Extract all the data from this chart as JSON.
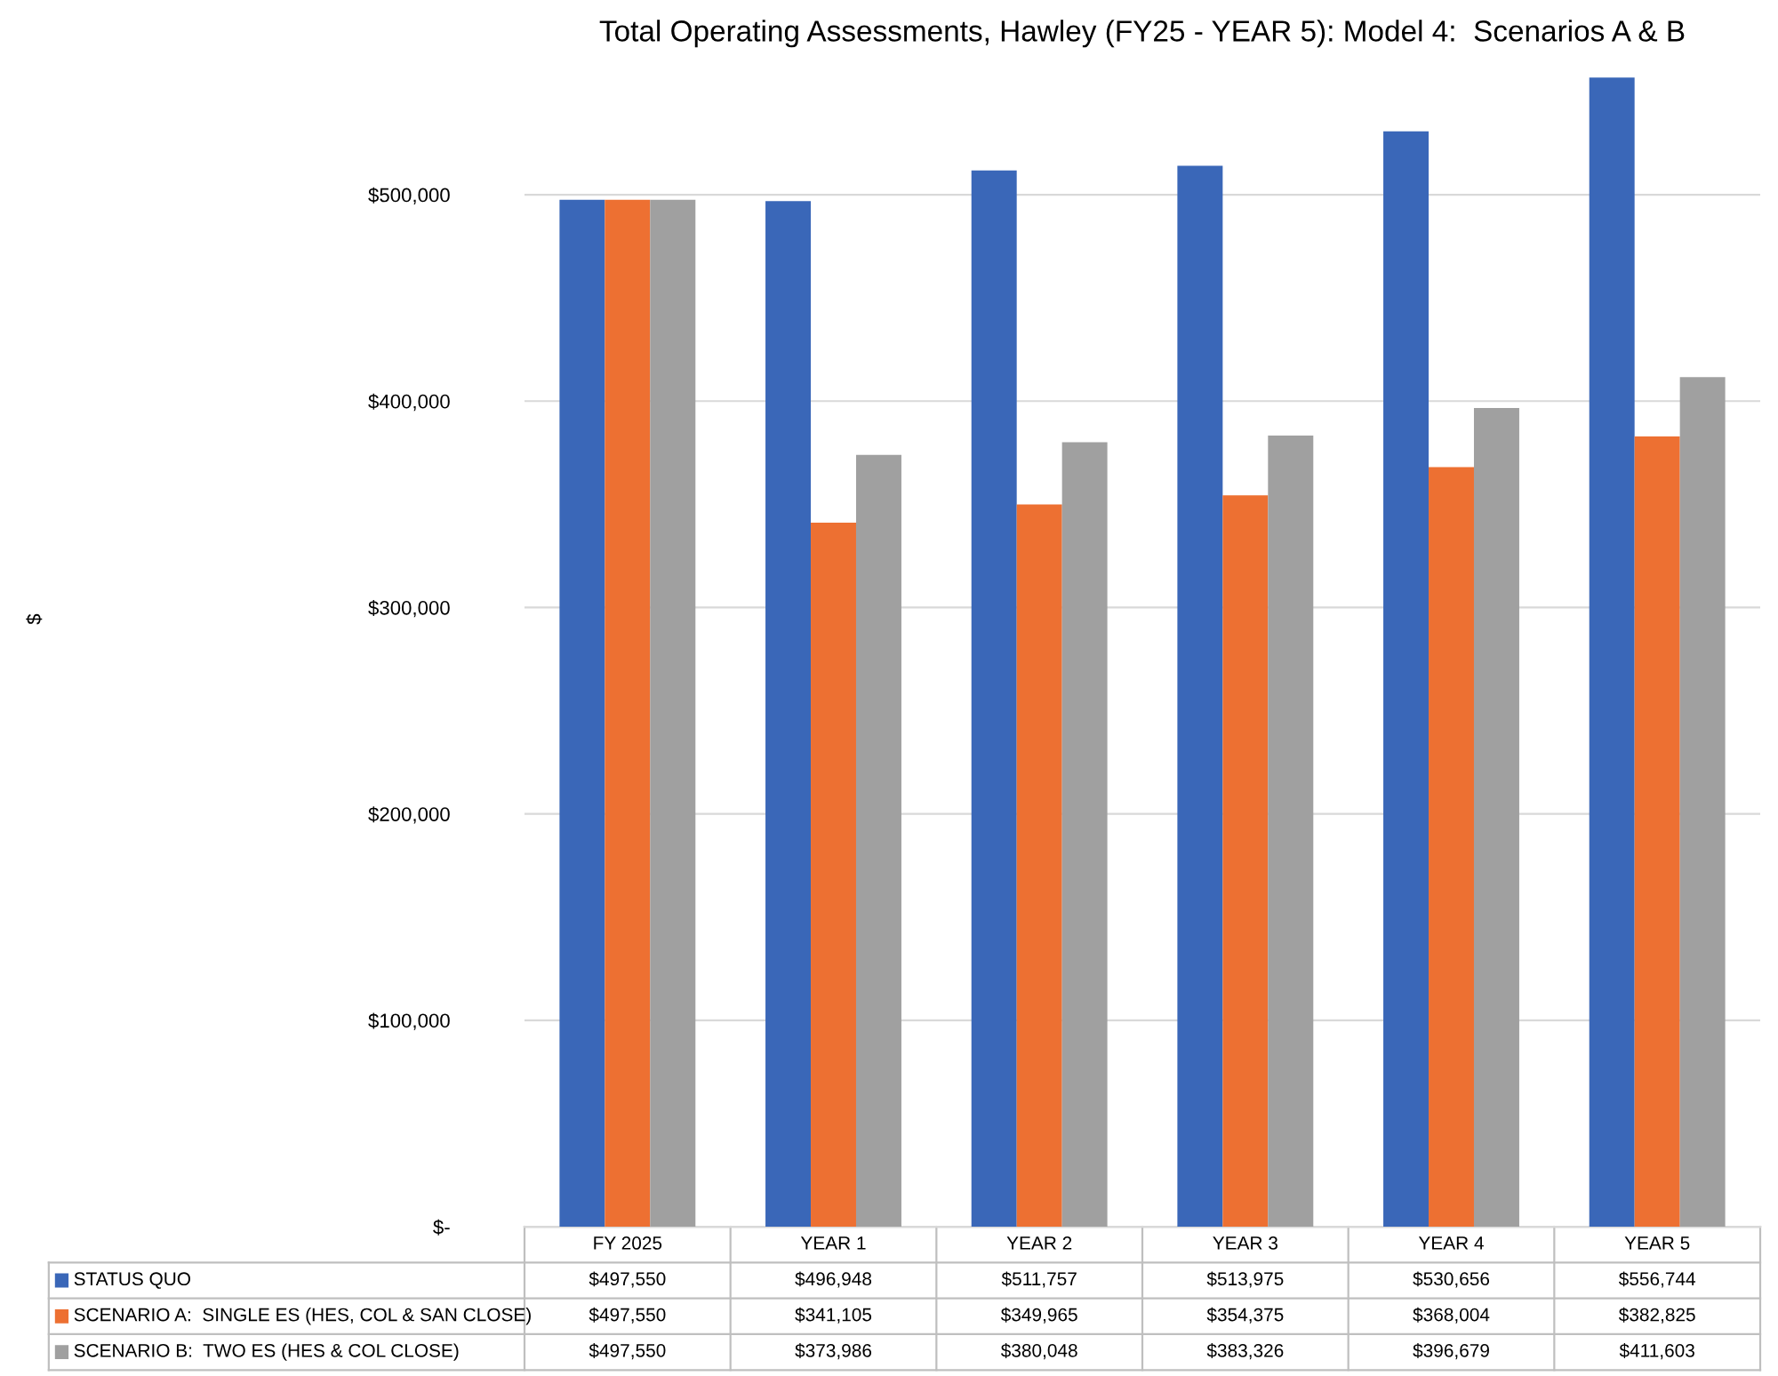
{
  "chart_data": {
    "type": "bar",
    "title": "Total Operating Assessments, Hawley (FY25 - YEAR 5): Model 4:  Scenarios A & B",
    "annotations": [
      "$"
    ],
    "categories": [
      "FY 2025",
      "YEAR 1",
      "YEAR 2",
      "YEAR 3",
      "YEAR 4",
      "YEAR 5"
    ],
    "series": [
      {
        "name": "STATUS QUO",
        "color": "#3a67b8",
        "values": [
          497550,
          496948,
          511757,
          513975,
          530656,
          556744
        ],
        "value_labels": [
          "$497,550",
          "$496,948",
          "$511,757",
          "$513,975",
          "$530,656",
          "$556,744"
        ]
      },
      {
        "name": "SCENARIO A:  SINGLE ES (HES, COL & SAN CLOSE)",
        "color": "#ed7032",
        "values": [
          497550,
          341105,
          349965,
          354375,
          368004,
          382825
        ],
        "value_labels": [
          "$497,550",
          "$341,105",
          "$349,965",
          "$354,375",
          "$368,004",
          "$382,825"
        ]
      },
      {
        "name": "SCENARIO B:  TWO ES (HES & COL CLOSE)",
        "color": "#a0a0a0",
        "values": [
          497550,
          373986,
          380048,
          383326,
          396679,
          411603
        ],
        "value_labels": [
          "$497,550",
          "$373,986",
          "$380,048",
          "$383,326",
          "$396,679",
          "$411,603"
        ]
      }
    ],
    "ylim": [
      0,
      560000
    ],
    "yticks": [
      {
        "value": 0,
        "label": "$-"
      },
      {
        "value": 100000,
        "label": "$100,000"
      },
      {
        "value": 200000,
        "label": "$200,000"
      },
      {
        "value": 300000,
        "label": "$300,000"
      },
      {
        "value": 400000,
        "label": "$400,000"
      },
      {
        "value": 500000,
        "label": "$500,000"
      }
    ],
    "grid": "y",
    "legend": "bottom"
  }
}
